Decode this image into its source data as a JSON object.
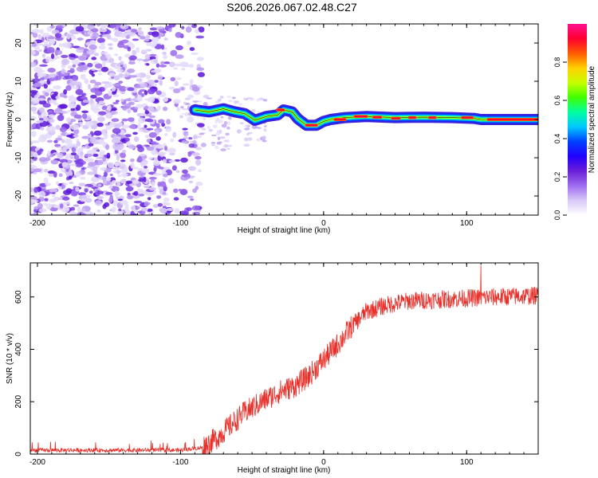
{
  "figure_title": "S206.2026.067.02.48.C27",
  "chart_data": [
    {
      "type": "heatmap",
      "title": "S206.2026.067.02.48.C27",
      "xlabel": "Height of straight line (km)",
      "ylabel": "Frequency (Hz)",
      "xlim": [
        -205,
        150
      ],
      "ylim": [
        -25,
        25
      ],
      "x_ticks": [
        -200,
        -100,
        0,
        100
      ],
      "y_ticks": [
        -20,
        -10,
        0,
        10,
        20
      ],
      "x_tick_labels": [
        "-200",
        "-100",
        "0",
        "100"
      ],
      "y_tick_labels": [
        "-20",
        "-10",
        "0",
        "10",
        "20"
      ],
      "colorbar": {
        "label": "Normalized spectral amplitude",
        "range": [
          0,
          1
        ],
        "ticks": [
          0.0,
          0.2,
          0.4,
          0.6,
          0.8
        ],
        "tick_labels": [
          "0.0",
          "0.2",
          "0.4",
          "0.6",
          "0.8"
        ],
        "colormap_stops": [
          "#ffffff",
          "#d8c8f8",
          "#9f6cf0",
          "#6a1fd6",
          "#2200ff",
          "#0040ff",
          "#00c8ff",
          "#00ffa0",
          "#40ff00",
          "#c8ff00",
          "#ffd000",
          "#ff5a00",
          "#ff0030",
          "#ff1090"
        ]
      },
      "noise_region_x": [
        -205,
        -85
      ],
      "ridge_center": [
        {
          "x": -90,
          "y": 2.5
        },
        {
          "x": -80,
          "y": 2.0
        },
        {
          "x": -70,
          "y": 2.8
        },
        {
          "x": -62,
          "y": 2.0
        },
        {
          "x": -55,
          "y": 1.5
        },
        {
          "x": -48,
          "y": -0.2
        },
        {
          "x": -40,
          "y": 0.8
        },
        {
          "x": -32,
          "y": 1.2
        },
        {
          "x": -28,
          "y": 2.5
        },
        {
          "x": -22,
          "y": 2.0
        },
        {
          "x": -18,
          "y": 0.2
        },
        {
          "x": -12,
          "y": -1.5
        },
        {
          "x": -5,
          "y": -1.5
        },
        {
          "x": 0,
          "y": -0.5
        },
        {
          "x": 5,
          "y": 0.0
        },
        {
          "x": 15,
          "y": 0.5
        },
        {
          "x": 30,
          "y": 0.8
        },
        {
          "x": 50,
          "y": 0.5
        },
        {
          "x": 70,
          "y": 0.6
        },
        {
          "x": 90,
          "y": 0.5
        },
        {
          "x": 105,
          "y": 0.3
        },
        {
          "x": 110,
          "y": 0.0
        },
        {
          "x": 150,
          "y": 0.0
        }
      ],
      "ridge_peak_segments": [
        {
          "x_start": -12,
          "x_end": -5,
          "y": -1.5
        },
        {
          "x_start": 8,
          "x_end": 15,
          "y": 0.0
        },
        {
          "x_start": 22,
          "x_end": 30,
          "y": 0.8
        },
        {
          "x_start": 35,
          "x_end": 40,
          "y": 0.6
        },
        {
          "x_start": 48,
          "x_end": 53,
          "y": 0.3
        },
        {
          "x_start": 60,
          "x_end": 64,
          "y": 0.5
        },
        {
          "x_start": 74,
          "x_end": 78,
          "y": 0.5
        },
        {
          "x_start": 97,
          "x_end": 104,
          "y": 0.5
        },
        {
          "x_start": 115,
          "x_end": 150,
          "y": 0.0
        },
        {
          "x_start": -32,
          "x_end": -28,
          "y": 2.5
        }
      ]
    },
    {
      "type": "line",
      "xlabel": "Height of straight line (km)",
      "ylabel": "SNR (10 * v/v)",
      "xlim": [
        -205,
        150
      ],
      "ylim": [
        0,
        730
      ],
      "x_ticks": [
        -200,
        -100,
        0,
        100
      ],
      "y_ticks": [
        0,
        200,
        400,
        600
      ],
      "x_tick_labels": [
        "-200",
        "-100",
        "0",
        "100"
      ],
      "y_tick_labels": [
        "0",
        "200",
        "400",
        "600"
      ],
      "series": [
        {
          "name": "SNR",
          "color": "#e8302a",
          "trend": [
            {
              "x": -205,
              "y": 15
            },
            {
              "x": -100,
              "y": 15
            },
            {
              "x": -85,
              "y": 25
            },
            {
              "x": -75,
              "y": 60
            },
            {
              "x": -65,
              "y": 110
            },
            {
              "x": -55,
              "y": 160
            },
            {
              "x": -40,
              "y": 210
            },
            {
              "x": -30,
              "y": 240
            },
            {
              "x": -20,
              "y": 260
            },
            {
              "x": -10,
              "y": 300
            },
            {
              "x": 0,
              "y": 360
            },
            {
              "x": 10,
              "y": 420
            },
            {
              "x": 20,
              "y": 490
            },
            {
              "x": 30,
              "y": 545
            },
            {
              "x": 45,
              "y": 570
            },
            {
              "x": 60,
              "y": 585
            },
            {
              "x": 80,
              "y": 590
            },
            {
              "x": 100,
              "y": 595
            },
            {
              "x": 120,
              "y": 600
            },
            {
              "x": 150,
              "y": 605
            }
          ],
          "max_value": 720,
          "max_at_x": 110
        }
      ]
    }
  ]
}
